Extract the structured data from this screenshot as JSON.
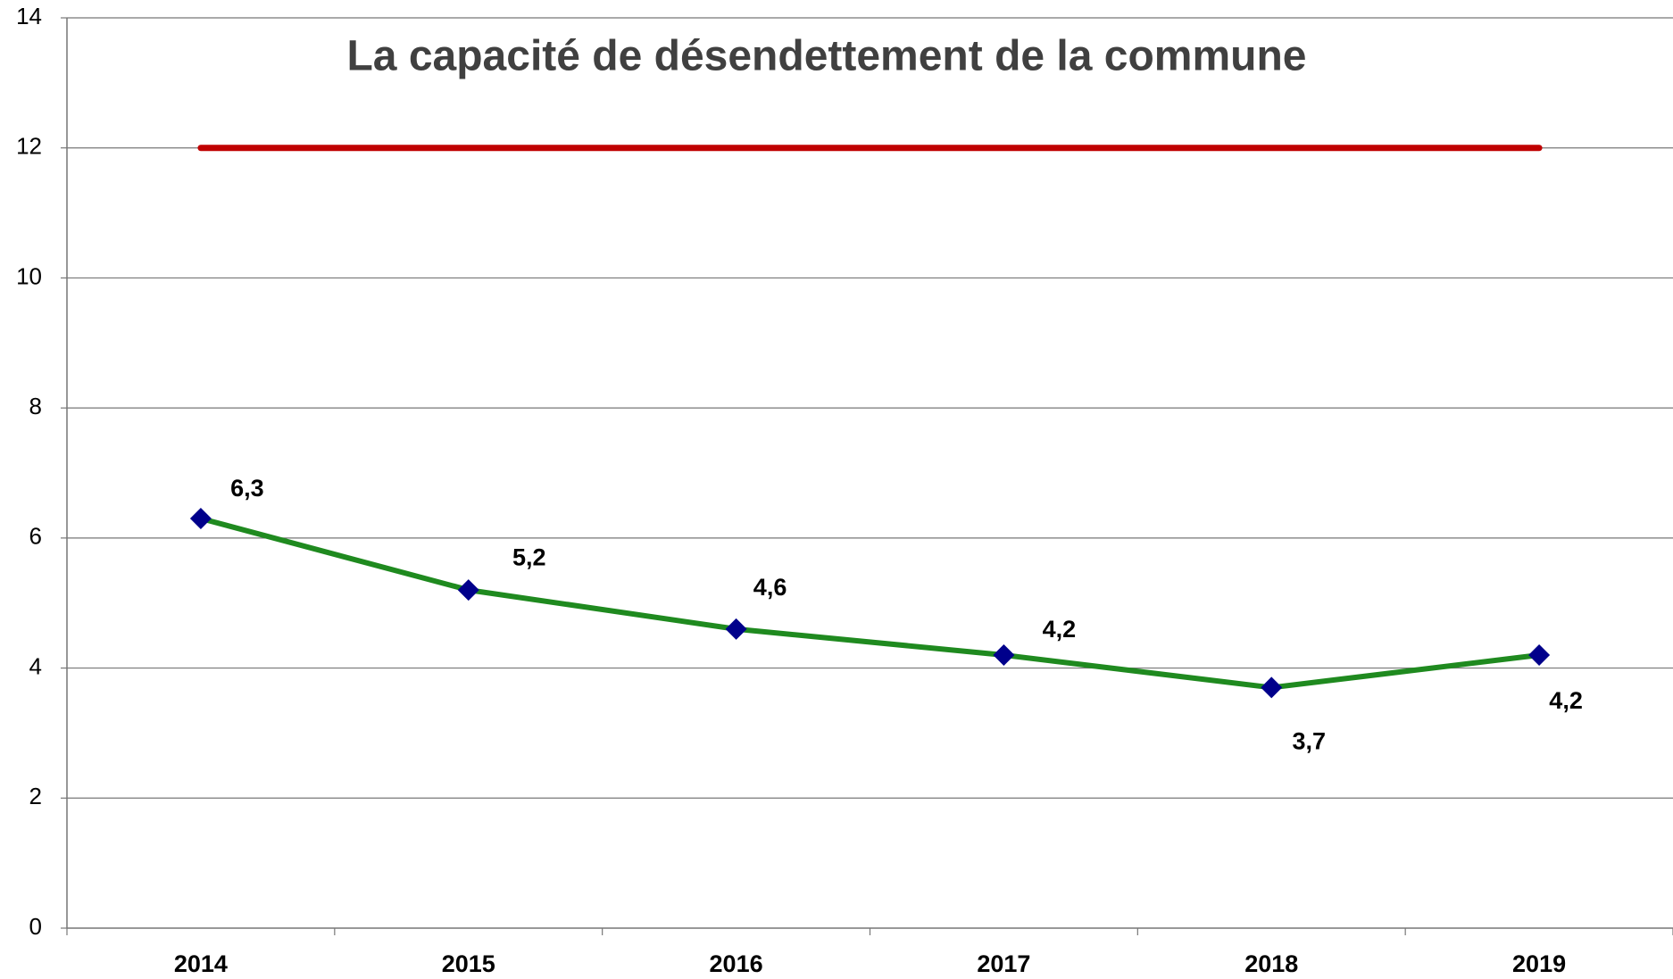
{
  "chart_data": {
    "type": "line",
    "title": "La capacité de désendettement de la commune",
    "categories": [
      "2014",
      "2015",
      "2016",
      "2017",
      "2018",
      "2019"
    ],
    "series": [
      {
        "color": "#1f8a1f",
        "marker_color": "#00008b",
        "values": [
          6.3,
          5.2,
          4.6,
          4.2,
          3.7,
          4.2
        ],
        "value_labels": [
          "6,3",
          "5,2",
          "4,6",
          "4,2",
          "3,7",
          "4,2"
        ]
      },
      {
        "color": "#c00000",
        "values": [
          12,
          12,
          12,
          12,
          12,
          12
        ]
      }
    ],
    "ylim": [
      0,
      14
    ],
    "yticks": [
      0,
      2,
      4,
      6,
      8,
      10,
      12,
      14
    ],
    "grid": true
  }
}
